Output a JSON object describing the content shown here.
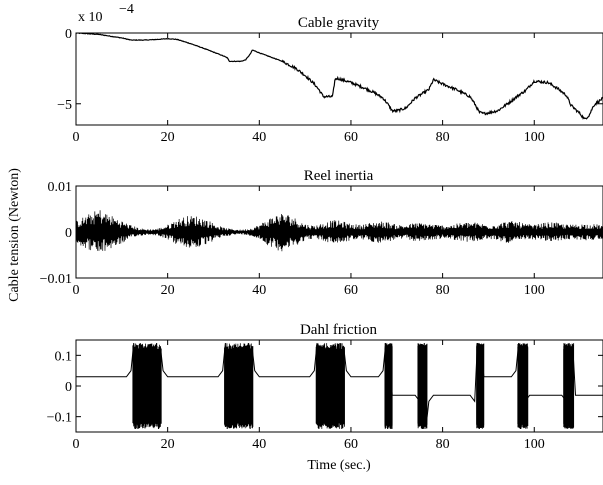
{
  "figure": {
    "ylabel": "Cable tension (Newton)",
    "xlabel": "Time (sec.)"
  },
  "chart_data": [
    {
      "type": "line",
      "title": "Cable gravity",
      "xlabel": "",
      "ylabel": "",
      "xlim": [
        0,
        115
      ],
      "ylim": [
        -6.5,
        0
      ],
      "xticks": [
        0,
        20,
        40,
        60,
        80,
        100
      ],
      "yticks": [
        -5,
        0
      ],
      "exponent_label": "x 10",
      "exponent_value": "−4",
      "grid": false,
      "series": [
        {
          "x": [
            0,
            5,
            10,
            12,
            15,
            18,
            20,
            22,
            25,
            28,
            30,
            32,
            33,
            33.5,
            36,
            37,
            38,
            38.5,
            40,
            45,
            48,
            50,
            52,
            53,
            54,
            56,
            56.5,
            57,
            60,
            63,
            65,
            67,
            68,
            69,
            70,
            72,
            74,
            76,
            77,
            78,
            80,
            83,
            86,
            87,
            88,
            89,
            92,
            95,
            97,
            98,
            100,
            103,
            105,
            107,
            108,
            109,
            110,
            111,
            112,
            113,
            115
          ],
          "y": [
            0,
            -0.1,
            -0.35,
            -0.5,
            -0.5,
            -0.45,
            -0.4,
            -0.45,
            -0.75,
            -1.1,
            -1.35,
            -1.6,
            -1.75,
            -2.0,
            -2.0,
            -1.9,
            -1.5,
            -1.2,
            -1.4,
            -2.0,
            -2.5,
            -3.0,
            -3.6,
            -4.0,
            -4.5,
            -4.5,
            -3.3,
            -3.2,
            -3.5,
            -3.9,
            -4.2,
            -4.6,
            -5.0,
            -5.5,
            -5.5,
            -5.3,
            -4.6,
            -4.2,
            -4.0,
            -3.3,
            -3.6,
            -4.0,
            -4.5,
            -5.0,
            -5.6,
            -5.7,
            -5.5,
            -4.8,
            -4.3,
            -4.1,
            -3.4,
            -3.5,
            -3.9,
            -4.4,
            -5.1,
            -5.4,
            -5.7,
            -6.1,
            -5.8,
            -5.1,
            -4.6
          ]
        }
      ]
    },
    {
      "type": "line",
      "title": "Reel inertia",
      "xlabel": "",
      "ylabel": "",
      "xlim": [
        0,
        115
      ],
      "ylim": [
        -0.01,
        0.01
      ],
      "xticks": [
        0,
        20,
        40,
        60,
        80,
        100
      ],
      "yticks": [
        -0.01,
        0,
        0.01
      ],
      "ytick_labels": [
        "−0.01",
        "0",
        "0.01"
      ],
      "grid": false,
      "series": [
        {
          "x": [
            0,
            2,
            4,
            5,
            6,
            8,
            10,
            12,
            14,
            16,
            18,
            20,
            22,
            24,
            26,
            28,
            30,
            32,
            34,
            36,
            38,
            40,
            42,
            44,
            45,
            46,
            48,
            50,
            52,
            54,
            56,
            58,
            60,
            62,
            64,
            66,
            68,
            70,
            72,
            74,
            76,
            78,
            80,
            82,
            84,
            86,
            88,
            90,
            92,
            94,
            96,
            98,
            100,
            102,
            104,
            106,
            108,
            110,
            112,
            115
          ],
          "amplitude": [
            0.0025,
            0.0035,
            0.0045,
            0.0052,
            0.0045,
            0.0035,
            0.0025,
            0.0015,
            0.0008,
            0.0006,
            0.0008,
            0.0016,
            0.0028,
            0.0035,
            0.0036,
            0.003,
            0.002,
            0.001,
            0.0007,
            0.0005,
            0.0008,
            0.0016,
            0.003,
            0.004,
            0.0042,
            0.004,
            0.003,
            0.0018,
            0.0014,
            0.002,
            0.0026,
            0.0024,
            0.0018,
            0.0016,
            0.002,
            0.0024,
            0.0022,
            0.0016,
            0.0016,
            0.002,
            0.002,
            0.0017,
            0.0015,
            0.0016,
            0.002,
            0.0022,
            0.002,
            0.0016,
            0.0018,
            0.0024,
            0.0024,
            0.0018,
            0.0016,
            0.002,
            0.0022,
            0.0018,
            0.0016,
            0.0018,
            0.0018,
            0.0016
          ]
        }
      ]
    },
    {
      "type": "line",
      "title": "Dahl friction",
      "xlabel": "Time (sec.)",
      "ylabel": "",
      "xlim": [
        0,
        115
      ],
      "ylim": [
        -0.15,
        0.15
      ],
      "xticks": [
        0,
        20,
        40,
        60,
        80,
        100
      ],
      "yticks": [
        -0.1,
        0,
        0.1
      ],
      "ytick_labels": [
        "−0.1",
        "0",
        "0.1"
      ],
      "grid": false,
      "series": [
        {
          "x": [
            0,
            11,
            12,
            12.6,
            13,
            13.4,
            14,
            15,
            16,
            17,
            17.6,
            18,
            18.4,
            19,
            20,
            22,
            31,
            32,
            32.6,
            33,
            33.4,
            34,
            35,
            36,
            37,
            37.6,
            38,
            38.4,
            39,
            40,
            42,
            51,
            52,
            52.6,
            53,
            53.4,
            54,
            55,
            56,
            57,
            57.6,
            58,
            58.4,
            59,
            60,
            62,
            66,
            67,
            67.6,
            68,
            68.4,
            69,
            74,
            75,
            75.6,
            76,
            76.4,
            77,
            78,
            86,
            87,
            87.6,
            88,
            88.4,
            89,
            95,
            96,
            96.6,
            97,
            97.4,
            98,
            99,
            106,
            107,
            107.6,
            108,
            108.4,
            109,
            115
          ],
          "y": [
            0.03,
            0.03,
            0.05,
            0.14,
            -0.14,
            0.13,
            -0.06,
            -0.04,
            -0.05,
            -0.06,
            0.14,
            -0.14,
            0.13,
            0.05,
            0.03,
            0.03,
            0.03,
            0.05,
            0.14,
            -0.14,
            0.13,
            -0.06,
            -0.04,
            -0.05,
            -0.06,
            0.14,
            -0.14,
            0.13,
            0.05,
            0.03,
            0.03,
            0.03,
            0.05,
            0.14,
            -0.14,
            0.13,
            -0.06,
            -0.04,
            -0.05,
            -0.06,
            0.14,
            -0.14,
            0.13,
            0.05,
            0.03,
            0.03,
            0.03,
            0.05,
            0.14,
            -0.14,
            0.13,
            -0.03,
            -0.03,
            -0.05,
            -0.14,
            0.14,
            -0.13,
            -0.05,
            -0.03,
            -0.03,
            -0.05,
            0.14,
            -0.14,
            0.13,
            0.03,
            0.03,
            0.05,
            0.14,
            -0.14,
            0.13,
            -0.05,
            -0.03,
            -0.03,
            -0.05,
            0.14,
            -0.14,
            0.13,
            -0.03,
            -0.03
          ]
        }
      ]
    }
  ]
}
